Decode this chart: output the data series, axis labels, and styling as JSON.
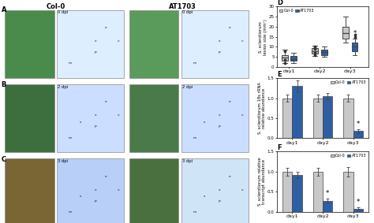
{
  "title_col0": "Col-0",
  "title_at1703": "AT1703",
  "row_labels": [
    "A",
    "B",
    "C"
  ],
  "col_labels": [
    "D",
    "E",
    "F"
  ],
  "dpi_labels": [
    "0 dpi",
    "2 dpi",
    "3 dpi"
  ],
  "panel_D": {
    "title": "D",
    "ylabel": "S. sclerotiorum\nlesion size (mm²)",
    "xlabel_groups": [
      "day1",
      "day2",
      "day3"
    ],
    "col0_medians": [
      4.5,
      8.0,
      17.0
    ],
    "col0_q1": [
      3.0,
      6.5,
      14.0
    ],
    "col0_q3": [
      6.0,
      9.5,
      20.0
    ],
    "col0_whisker_low": [
      2.0,
      5.5,
      12.0
    ],
    "col0_whisker_high": [
      8.5,
      10.5,
      25.0
    ],
    "col0_outliers_d1": [
      2.0,
      3.5,
      8.0
    ],
    "col0_outliers_d2": [
      6.0,
      7.0,
      9.0,
      9.5,
      10.0
    ],
    "col0_outliers_d3": [],
    "at1703_medians": [
      4.0,
      7.5,
      10.0
    ],
    "at1703_q1": [
      3.0,
      6.0,
      8.0
    ],
    "at1703_q3": [
      5.5,
      8.5,
      12.0
    ],
    "at1703_whisker_low": [
      2.0,
      5.0,
      6.0
    ],
    "at1703_whisker_high": [
      7.0,
      10.0,
      14.0
    ],
    "at1703_outliers_d3": [
      15.0,
      16.0
    ],
    "ylim": [
      0,
      30
    ],
    "yticks": [
      0,
      5,
      10,
      15,
      20,
      25,
      30
    ],
    "col0_color": "#c8c8c8",
    "at1703_color": "#2e5fa3"
  },
  "panel_E": {
    "title": "E",
    "ylabel": "S. sclerotiorum 18s rRNA\nrelative abundance",
    "xlabel_groups": [
      "day1",
      "day2",
      "day3"
    ],
    "col0_vals": [
      1.0,
      1.0,
      1.0
    ],
    "col0_err": [
      0.08,
      0.08,
      0.08
    ],
    "at1703_vals": [
      1.3,
      1.05,
      0.18
    ],
    "at1703_err": [
      0.15,
      0.08,
      0.05
    ],
    "ylim": [
      0,
      1.5
    ],
    "yticks": [
      0.0,
      0.5,
      1.0,
      1.5
    ],
    "col0_color": "#c8c8c8",
    "at1703_color": "#2e5fa3",
    "star_day3": true
  },
  "panel_F": {
    "title": "F",
    "ylabel": "S. sclerotiorum relative\ntranscript abundance",
    "xlabel_groups": [
      "day1",
      "day2",
      "day3"
    ],
    "col0_vals": [
      1.0,
      1.0,
      1.0
    ],
    "col0_err": [
      0.1,
      0.1,
      0.12
    ],
    "at1703_vals": [
      0.92,
      0.28,
      0.08
    ],
    "at1703_err": [
      0.08,
      0.05,
      0.03
    ],
    "ylim": [
      0,
      1.5
    ],
    "yticks": [
      0.0,
      0.5,
      1.0,
      1.5
    ],
    "col0_color": "#c8c8c8",
    "at1703_color": "#2e5fa3",
    "star_day2": true,
    "star_day3": true
  },
  "bg_color": "#ffffff",
  "legend_col0": "Col-0",
  "legend_at1703": "AT1703",
  "colors_leaf_col0": [
    "#4a8a4a",
    "#3d6e3d",
    "#7a6535"
  ],
  "colors_leaf_at1703": [
    "#5a9a5a",
    "#4a7a4a",
    "#4a7040"
  ],
  "micro_colors_col0": [
    "#ddeeff",
    "#ccdeff",
    "#b8d0f8"
  ],
  "micro_colors_at1703": [
    "#ddeeff",
    "#ccdeff",
    "#d0e4f8"
  ]
}
